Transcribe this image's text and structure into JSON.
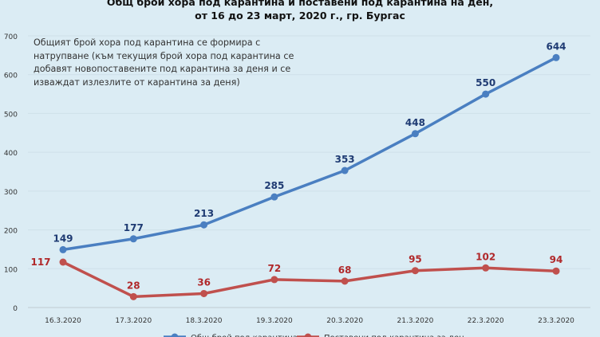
{
  "chart_data": {
    "type": "line",
    "title": "Общ брой хора под карантина  и поставени под карантина  на ден,\nот 16 до 23 март, 2020 г., гр. Бургас",
    "annotation": "Общият брой хора под карантина се формира с натрупване (към текущия брой хора под карантина се добавят новопоставените под карантина за деня и се изваждат излезлите от карантина за деня)",
    "categories": [
      "16.3.2020",
      "17.3.2020",
      "18.3.2020",
      "19.3.2020",
      "20.3.2020",
      "21.3.2020",
      "22.3.2020",
      "23.3.2020"
    ],
    "ylim": [
      0,
      700
    ],
    "yticks": [
      0,
      100,
      200,
      300,
      400,
      500,
      600,
      700
    ],
    "grid": true,
    "legend_position": "bottom",
    "series": [
      {
        "name": "Общ брой под карантина",
        "color": "#4a7fc1",
        "label_color": "#1f3b73",
        "values": [
          149,
          177,
          213,
          285,
          353,
          448,
          550,
          644
        ]
      },
      {
        "name": "Поставени под карантина за ден",
        "color": "#c0504d",
        "label_color": "#b0282a",
        "values": [
          117,
          28,
          36,
          72,
          68,
          95,
          102,
          94
        ]
      }
    ]
  }
}
